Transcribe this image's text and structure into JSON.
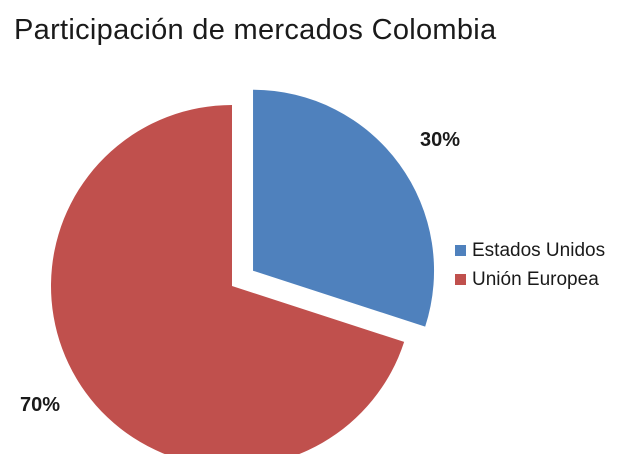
{
  "chart_data": {
    "type": "pie",
    "title": "Participación de mercados Colombia",
    "slices": [
      {
        "label": "Estados Unidos",
        "value": 30,
        "display": "30%",
        "color": "#4f81bd",
        "exploded": true
      },
      {
        "label": "Unión Europea",
        "value": 70,
        "display": "70%",
        "color": "#c0504d",
        "exploded": false
      }
    ],
    "legend_position": "right"
  }
}
